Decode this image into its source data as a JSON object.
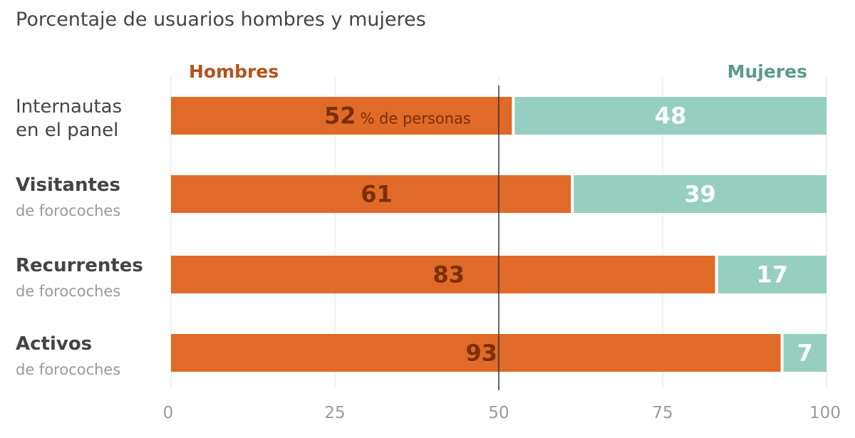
{
  "chart_data": {
    "type": "bar",
    "stacked": true,
    "orientation": "horizontal",
    "title": "Porcentaje de usuarios hombres y mujeres",
    "categories": [
      {
        "primary": "Internautas",
        "secondary": "en el panel",
        "primary_bold": false
      },
      {
        "primary": "Visitantes",
        "secondary": "de forocoches",
        "primary_bold": true
      },
      {
        "primary": "Recurrentes",
        "secondary": "de forocoches",
        "primary_bold": true
      },
      {
        "primary": "Activos",
        "secondary": "de forocoches",
        "primary_bold": true
      }
    ],
    "series": [
      {
        "name": "Hombres",
        "values": [
          52,
          61,
          83,
          93
        ],
        "color": "#e06a27",
        "label_color": "#7a2f08"
      },
      {
        "name": "Mujeres",
        "values": [
          48,
          39,
          17,
          7
        ],
        "color": "#96cfbf",
        "label_color": "#ffffff"
      }
    ],
    "value_unit_note": "% de personas",
    "xlim": [
      0,
      100
    ],
    "xticks": [
      0,
      25,
      50,
      75,
      100
    ],
    "grid": true,
    "reference_line": 50,
    "legend": "top"
  },
  "colors": {
    "grid": "#e3e3e3",
    "reference_line": "#333333",
    "tick_text": "#9a9a9a",
    "title_text": "#444444",
    "category_text": "#444444",
    "secondary_text": "#999999",
    "mujeres_legend": "#5a9a8c",
    "hombres_legend": "#b5511c"
  }
}
